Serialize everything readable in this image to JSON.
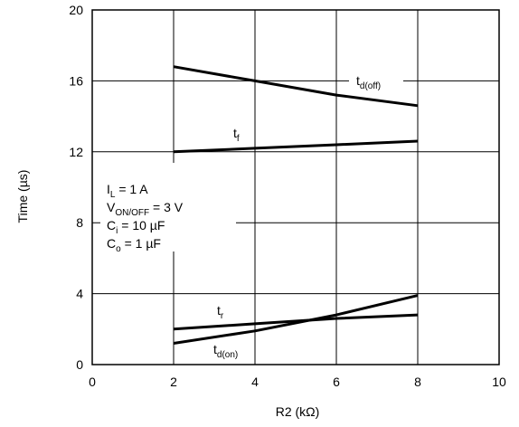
{
  "chart_data": {
    "type": "line",
    "xlabel": "R2 (kΩ)",
    "ylabel": "Time (µs)",
    "xlim": [
      0,
      10
    ],
    "ylim": [
      0,
      20
    ],
    "x_ticks": [
      0,
      2,
      4,
      6,
      8,
      10
    ],
    "y_ticks": [
      0,
      4,
      8,
      12,
      16,
      20
    ],
    "grid": true,
    "series": [
      {
        "name": "t_d(off)",
        "x": [
          2,
          4,
          6,
          8
        ],
        "values": [
          16.8,
          16.0,
          15.2,
          14.6
        ]
      },
      {
        "name": "t_f",
        "x": [
          2,
          4,
          6,
          8
        ],
        "values": [
          12.0,
          12.2,
          12.4,
          12.6
        ]
      },
      {
        "name": "t_r",
        "x": [
          2,
          4,
          6,
          8
        ],
        "values": [
          2.0,
          2.3,
          2.6,
          2.8
        ]
      },
      {
        "name": "t_d(on)",
        "x": [
          2,
          4,
          6,
          8
        ],
        "values": [
          1.2,
          1.9,
          2.8,
          3.9
        ]
      }
    ],
    "series_labels": {
      "td_off": {
        "main": "t",
        "sub": "d(off)"
      },
      "tf": {
        "main": "t",
        "sub": "f"
      },
      "tr": {
        "main": "t",
        "sub": "r"
      },
      "td_on": {
        "main": "t",
        "sub": "d(on)"
      }
    },
    "conditions": [
      {
        "main": "I",
        "sub": "L",
        "rest": " = 1 A"
      },
      {
        "main": "V",
        "sub": "ON/OFF",
        "rest": " = 3 V"
      },
      {
        "main": "C",
        "sub": "i",
        "rest": " = 10 µF"
      },
      {
        "main": "C",
        "sub": "o",
        "rest": " = 1 µF"
      }
    ]
  }
}
